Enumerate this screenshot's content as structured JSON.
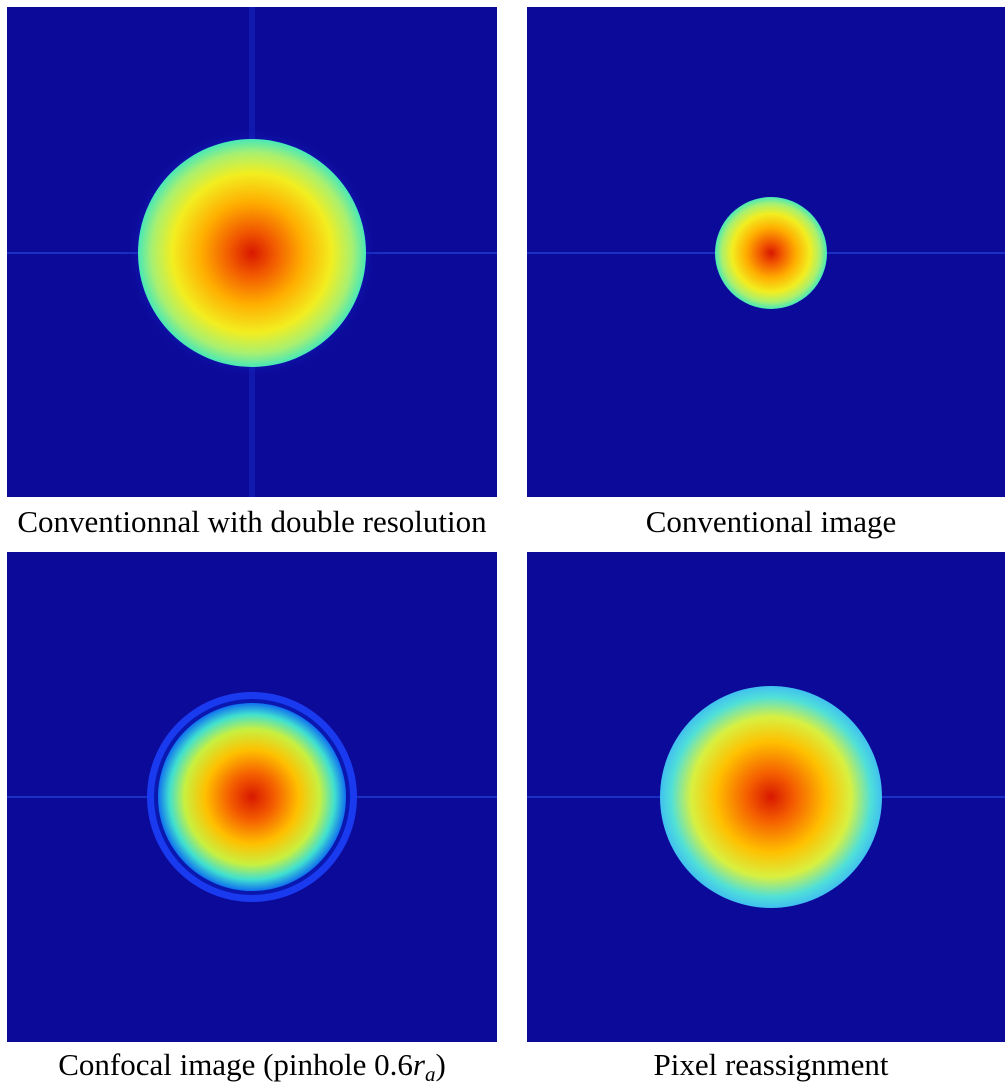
{
  "panels": [
    {
      "caption": "Conventionnal with double resolution"
    },
    {
      "caption": "Conventional image"
    },
    {
      "caption": {
        "text": "Confocal image (pinhole 0.6",
        "symbol": "r",
        "subscript": "a",
        "end": ")"
      }
    },
    {
      "caption": "Pixel reassignment"
    }
  ]
}
